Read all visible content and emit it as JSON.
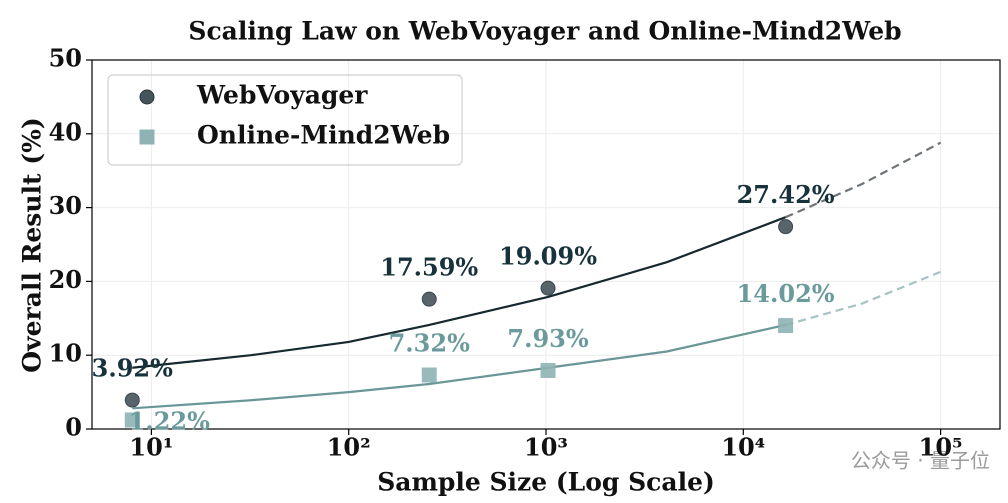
{
  "chart_data": {
    "type": "scatter",
    "title": "Scaling Law on WebVoyager and Online-Mind2Web",
    "x_label": "Sample Size (Log Scale)",
    "y_label": "Overall Result (%)",
    "x": [
      8,
      256,
      1024,
      16384
    ],
    "x_scale": "log",
    "xlim": [
      5,
      200000
    ],
    "xticks": [
      {
        "value": 10,
        "label": "10¹"
      },
      {
        "value": 100,
        "label": "10²"
      },
      {
        "value": 1000,
        "label": "10³"
      },
      {
        "value": 10000,
        "label": "10⁴"
      },
      {
        "value": 100000,
        "label": "10⁵"
      }
    ],
    "ylim": [
      0,
      50
    ],
    "yticks": [
      0,
      10,
      20,
      30,
      40,
      50
    ],
    "grid": true,
    "legend": "upper left",
    "fit_x": [
      8,
      32,
      100,
      256,
      1024,
      4096,
      16384,
      40000,
      100000
    ],
    "fit_dashed_from": 16384,
    "series": [
      {
        "name": "WebVoyager",
        "marker": "circle",
        "color": "#46545b",
        "line_color": "#15292e",
        "dash_color": "#6e7478",
        "label_color": "#17323a",
        "values": [
          3.92,
          17.59,
          19.09,
          27.42
        ],
        "value_labels": [
          "3.92%",
          "17.59%",
          "19.09%",
          "27.42%"
        ],
        "fit_values": [
          8.3,
          10.0,
          11.8,
          14.1,
          17.9,
          22.6,
          28.7,
          33.2,
          38.8
        ]
      },
      {
        "name": "Online-Mind2Web",
        "marker": "square",
        "color": "#8fb3b4",
        "line_color": "#6b9698",
        "dash_color": "#a6c2c2",
        "label_color": "#6a9a9b",
        "values": [
          1.22,
          7.32,
          7.93,
          14.02
        ],
        "value_labels": [
          "1.22%",
          "7.32%",
          "7.93%",
          "14.02%"
        ],
        "fit_values": [
          2.8,
          3.9,
          5.0,
          6.1,
          8.3,
          10.5,
          14.1,
          17.0,
          21.3
        ]
      }
    ],
    "watermark": "公众号 · 量子位"
  }
}
